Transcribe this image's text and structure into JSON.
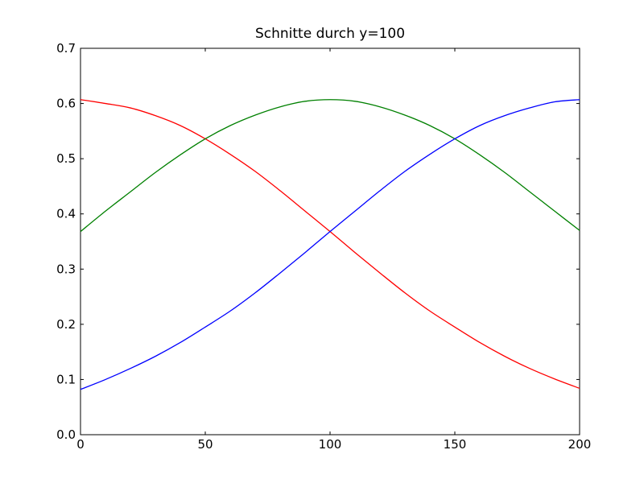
{
  "chart_data": {
    "type": "line",
    "title": "Schnitte durch y=100",
    "xlabel": "",
    "ylabel": "",
    "xlim": [
      0,
      200
    ],
    "ylim": [
      0,
      0.7
    ],
    "xticks": [
      0,
      50,
      100,
      150,
      200
    ],
    "xtick_labels": [
      "0",
      "50",
      "100",
      "150",
      "200"
    ],
    "yticks": [
      0,
      0.1,
      0.2,
      0.3,
      0.4,
      0.5,
      0.6,
      0.7
    ],
    "ytick_labels": [
      "0.0",
      "0.1",
      "0.2",
      "0.3",
      "0.4",
      "0.5",
      "0.6",
      "0.7"
    ],
    "grid": false,
    "legend": "none",
    "x": [
      0,
      10,
      20,
      30,
      40,
      50,
      60,
      70,
      80,
      90,
      100,
      110,
      120,
      130,
      140,
      150,
      160,
      170,
      180,
      190,
      200
    ],
    "series": [
      {
        "color": "#ff0000",
        "values": [
          0.607,
          0.6,
          0.592,
          0.578,
          0.56,
          0.536,
          0.508,
          0.477,
          0.442,
          0.405,
          0.368,
          0.33,
          0.293,
          0.257,
          0.224,
          0.195,
          0.167,
          0.142,
          0.12,
          0.101,
          0.084
        ]
      },
      {
        "color": "#008000",
        "values": [
          0.368,
          0.405,
          0.44,
          0.475,
          0.507,
          0.536,
          0.56,
          0.579,
          0.594,
          0.604,
          0.607,
          0.604,
          0.594,
          0.579,
          0.56,
          0.536,
          0.507,
          0.475,
          0.44,
          0.405,
          0.37
        ]
      },
      {
        "color": "#0000ff",
        "values": [
          0.082,
          0.1,
          0.12,
          0.142,
          0.167,
          0.195,
          0.224,
          0.257,
          0.293,
          0.33,
          0.368,
          0.405,
          0.442,
          0.477,
          0.508,
          0.536,
          0.56,
          0.578,
          0.592,
          0.603,
          0.607
        ]
      }
    ]
  }
}
